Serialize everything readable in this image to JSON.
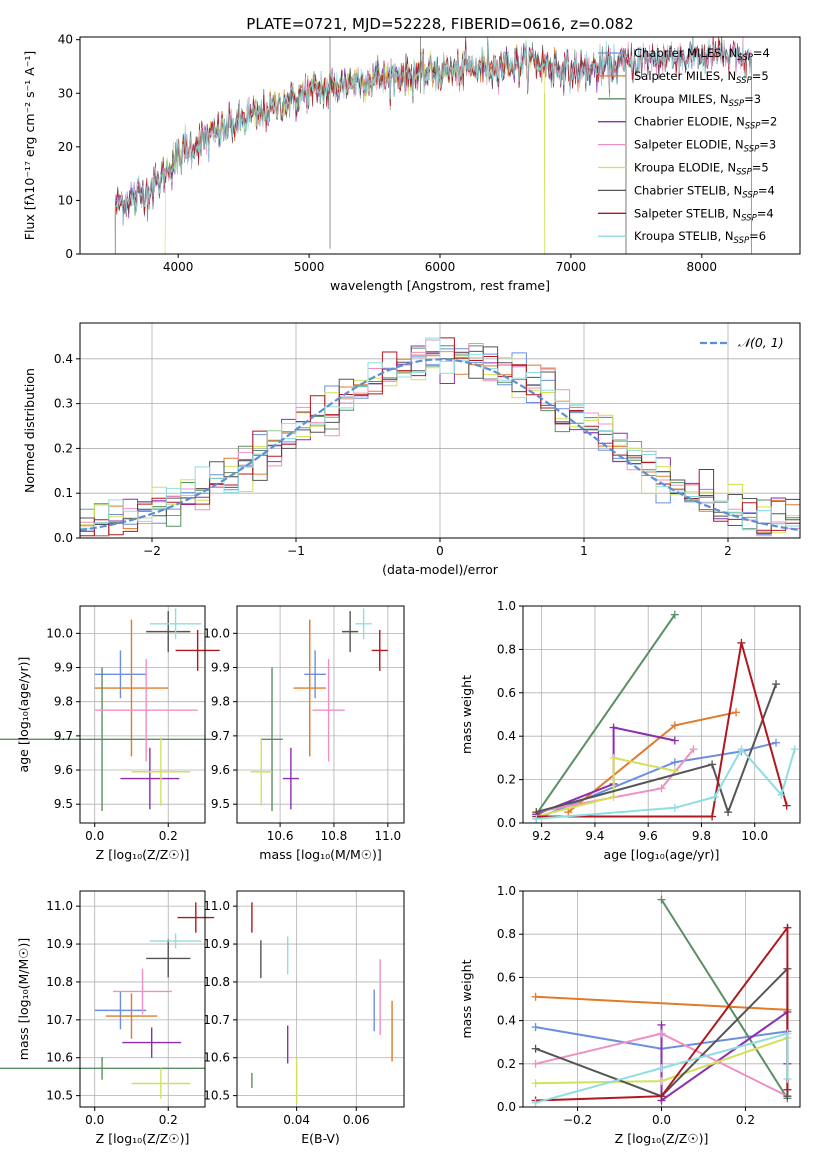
{
  "title": "PLATE=0721, MJD=52228, FIBERID=0616, z=0.082",
  "colors": [
    "#6b8fde",
    "#e07b2a",
    "#5a8f63",
    "#8b2fb0",
    "#f08fc5",
    "#d3e05a",
    "#555555",
    "#b01820",
    "#8fdde0"
  ],
  "chart_data": [
    {
      "id": "spectrum",
      "type": "line",
      "xlabel": "wavelength [Angstrom, rest frame]",
      "ylabel": "Flux [fλ10⁻¹⁷ erg cm⁻² s⁻¹ A⁻¹]",
      "xlim": [
        3250,
        8750
      ],
      "ylim": [
        0,
        40.5
      ],
      "xticks": [
        4000,
        5000,
        6000,
        7000,
        8000
      ],
      "yticks": [
        0,
        10,
        20,
        30,
        40
      ],
      "grid": false,
      "legend_position": "top-right",
      "continuum": [
        [
          3520,
          9
        ],
        [
          3700,
          11
        ],
        [
          3850,
          13
        ],
        [
          3950,
          17
        ],
        [
          4100,
          20
        ],
        [
          4400,
          24
        ],
        [
          4700,
          27
        ],
        [
          5000,
          30
        ],
        [
          5300,
          32
        ],
        [
          5600,
          33
        ],
        [
          6000,
          34
        ],
        [
          6400,
          35
        ],
        [
          6700,
          36
        ],
        [
          7000,
          34
        ],
        [
          7300,
          35
        ],
        [
          7500,
          36
        ],
        [
          7800,
          37
        ],
        [
          8100,
          37
        ],
        [
          8380,
          36
        ]
      ],
      "series": [
        {
          "name": "Chabrier MILES, N_SSP=4",
          "label_main": "Chabrier MILES, N",
          "label_sub": "SSP",
          "label_tail": "=4",
          "range": [
            3520,
            7420
          ]
        },
        {
          "name": "Salpeter MILES, N_SSP=5",
          "label_main": "Salpeter MILES, N",
          "label_sub": "SSP",
          "label_tail": "=5",
          "range": [
            3520,
            7420
          ]
        },
        {
          "name": "Kroupa MILES, N_SSP=3",
          "label_main": "Kroupa MILES, N",
          "label_sub": "SSP",
          "label_tail": "=3",
          "range": [
            3520,
            7420
          ]
        },
        {
          "name": "Chabrier ELODIE, N_SSP=2",
          "label_main": "Chabrier ELODIE, N",
          "label_sub": "SSP",
          "label_tail": "=2",
          "range": [
            3520,
            8380
          ]
        },
        {
          "name": "Salpeter ELODIE, N_SSP=3",
          "label_main": "Salpeter ELODIE, N",
          "label_sub": "SSP",
          "label_tail": "=3",
          "range": [
            3520,
            8380
          ]
        },
        {
          "name": "Kroupa ELODIE, N_SSP=5",
          "label_main": "Kroupa ELODIE, N",
          "label_sub": "SSP",
          "label_tail": "=5",
          "range": [
            3900,
            6800
          ]
        },
        {
          "name": "Chabrier STELIB, N_SSP=4",
          "label_main": "Chabrier STELIB, N",
          "label_sub": "SSP",
          "label_tail": "=4",
          "range": [
            3520,
            8380
          ]
        },
        {
          "name": "Salpeter STELIB, N_SSP=4",
          "label_main": "Salpeter STELIB, N",
          "label_sub": "SSP",
          "label_tail": "=4",
          "range": [
            3520,
            8380
          ]
        },
        {
          "name": "Kroupa STELIB, N_SSP=6",
          "label_main": "Kroupa STELIB, N",
          "label_sub": "SSP",
          "label_tail": "=6",
          "range": [
            3520,
            8380
          ]
        }
      ]
    },
    {
      "id": "residuals",
      "type": "line",
      "xlabel": "(data-model)/error",
      "ylabel": "Normed distribution",
      "xlim": [
        -2.5,
        2.5
      ],
      "ylim": [
        0,
        0.48
      ],
      "xticks": [
        -2,
        -1,
        0,
        1,
        2
      ],
      "xtick_labels": [
        "−2",
        "−1",
        "0",
        "1",
        "2"
      ],
      "yticks": [
        0,
        0.1,
        0.2,
        0.3,
        0.4
      ],
      "ytick_labels": [
        "0.0",
        "0.1",
        "0.2",
        "0.3",
        "0.4"
      ],
      "grid": true,
      "legend_position": "top-right",
      "legend_label": "𝒩(0, 1)",
      "gaussian": {
        "mean": 0,
        "sigma": 1
      },
      "bin_width": 0.1
    },
    {
      "id": "age_vs_Z",
      "type": "scatter",
      "xlabel": "Z [log₁₀(Z/Z☉)]",
      "ylabel": "age  [log₁₀(age/yr)]",
      "xlim": [
        -0.04,
        0.3
      ],
      "ylim": [
        9.445,
        10.08
      ],
      "xticks": [
        0.0,
        0.2
      ],
      "xtick_labels": [
        "0.0",
        "0.2"
      ],
      "yticks": [
        9.5,
        9.6,
        9.7,
        9.8,
        9.9,
        10.0
      ],
      "ytick_labels": [
        "9.5",
        "9.6",
        "9.7",
        "9.8",
        "9.9",
        "10.0"
      ],
      "grid": true,
      "points": [
        {
          "x": 0.07,
          "y": 9.88,
          "xerr": 0.07,
          "yerr": 0.07
        },
        {
          "x": 0.1,
          "y": 9.84,
          "xerr": 0.1,
          "yerr": 0.2
        },
        {
          "x": 0.02,
          "y": 9.69,
          "xerr": 0.3,
          "yerr": 0.21
        },
        {
          "x": 0.15,
          "y": 9.575,
          "xerr": 0.08,
          "yerr": 0.09
        },
        {
          "x": 0.14,
          "y": 9.775,
          "xerr": 0.14,
          "yerr": 0.15
        },
        {
          "x": 0.18,
          "y": 9.595,
          "xerr": 0.08,
          "yerr": 0.1
        },
        {
          "x": 0.2,
          "y": 10.005,
          "xerr": 0.06,
          "yerr": 0.06
        },
        {
          "x": 0.28,
          "y": 9.95,
          "xerr": 0.06,
          "yerr": 0.06
        },
        {
          "x": 0.22,
          "y": 10.028,
          "xerr": 0.07,
          "yerr": 0.045
        }
      ]
    },
    {
      "id": "age_vs_mass",
      "type": "scatter",
      "xlabel": "mass [log₁₀(M/M☉)]",
      "ylabel": "",
      "xlim": [
        10.44,
        11.06
      ],
      "ylim": [
        9.445,
        10.08
      ],
      "xticks": [
        10.6,
        10.8,
        11.0
      ],
      "xtick_labels": [
        "10.6",
        "10.8",
        "11.0"
      ],
      "yticks": [
        9.5,
        9.6,
        9.7,
        9.8,
        9.9,
        10.0
      ],
      "ytick_labels": [
        "9.5",
        "9.6",
        "9.7",
        "9.8",
        "9.9",
        "10.0"
      ],
      "grid": true,
      "points": [
        {
          "x": 10.73,
          "y": 9.88,
          "xerr": 0.04,
          "yerr": 0.07
        },
        {
          "x": 10.71,
          "y": 9.84,
          "xerr": 0.06,
          "yerr": 0.2
        },
        {
          "x": 10.57,
          "y": 9.69,
          "xerr": 0.04,
          "yerr": 0.21
        },
        {
          "x": 10.64,
          "y": 9.575,
          "xerr": 0.03,
          "yerr": 0.09
        },
        {
          "x": 10.78,
          "y": 9.775,
          "xerr": 0.06,
          "yerr": 0.15
        },
        {
          "x": 10.53,
          "y": 9.595,
          "xerr": 0.04,
          "yerr": 0.1
        },
        {
          "x": 10.86,
          "y": 10.005,
          "xerr": 0.03,
          "yerr": 0.06
        },
        {
          "x": 10.97,
          "y": 9.95,
          "xerr": 0.03,
          "yerr": 0.06
        },
        {
          "x": 10.91,
          "y": 10.028,
          "xerr": 0.03,
          "yerr": 0.045
        }
      ]
    },
    {
      "id": "weight_vs_age",
      "type": "line",
      "xlabel": "age  [log₁₀(age/yr)]",
      "ylabel": "mass weight",
      "xlim": [
        9.13,
        10.17
      ],
      "ylim": [
        0,
        1.0
      ],
      "xticks": [
        9.2,
        9.4,
        9.6,
        9.8,
        10.0
      ],
      "xtick_labels": [
        "9.2",
        "9.4",
        "9.6",
        "9.8",
        "10.0"
      ],
      "yticks": [
        0,
        0.2,
        0.4,
        0.6,
        0.8,
        1.0
      ],
      "ytick_labels": [
        "0.0",
        "0.2",
        "0.4",
        "0.6",
        "0.8",
        "1.0"
      ],
      "grid": true,
      "series": [
        {
          "x": [
            9.18,
            9.7,
            9.95,
            10.08
          ],
          "y": [
            0.02,
            0.28,
            0.33,
            0.37
          ]
        },
        {
          "x": [
            9.3,
            9.7,
            9.93
          ],
          "y": [
            0.05,
            0.45,
            0.51
          ]
        },
        {
          "x": [
            9.18,
            9.7
          ],
          "y": [
            0.04,
            0.96
          ]
        },
        {
          "x": [
            9.18,
            9.47,
            9.47,
            9.7
          ],
          "y": [
            0.04,
            0.18,
            0.44,
            0.38
          ]
        },
        {
          "x": [
            9.18,
            9.65,
            9.77
          ],
          "y": [
            0.05,
            0.16,
            0.34
          ]
        },
        {
          "x": [
            9.18,
            9.47,
            9.47,
            9.7
          ],
          "y": [
            0.03,
            0.12,
            0.3,
            0.24
          ]
        },
        {
          "x": [
            9.18,
            9.84,
            9.9,
            10.08
          ],
          "y": [
            0.05,
            0.27,
            0.05,
            0.64
          ]
        },
        {
          "x": [
            9.18,
            9.84,
            9.95,
            10.12
          ],
          "y": [
            0.03,
            0.03,
            0.83,
            0.08
          ]
        },
        {
          "x": [
            9.18,
            9.7,
            9.85,
            9.95,
            10.1,
            10.15
          ],
          "y": [
            0.02,
            0.07,
            0.12,
            0.34,
            0.13,
            0.34
          ]
        }
      ]
    },
    {
      "id": "mass_vs_Z",
      "type": "scatter",
      "xlabel": "Z [log₁₀(Z/Z☉)]",
      "ylabel": "mass [log₁₀(M/M☉)]",
      "xlim": [
        -0.04,
        0.3
      ],
      "ylim": [
        10.47,
        11.04
      ],
      "xticks": [
        0.0,
        0.2
      ],
      "xtick_labels": [
        "0.0",
        "0.2"
      ],
      "yticks": [
        10.5,
        10.6,
        10.7,
        10.8,
        10.9,
        11.0
      ],
      "ytick_labels": [
        "10.5",
        "10.6",
        "10.7",
        "10.8",
        "10.9",
        "11.0"
      ],
      "grid": true,
      "points": [
        {
          "x": 0.07,
          "y": 10.725,
          "xerr": 0.07,
          "yerr": 0.05
        },
        {
          "x": 0.1,
          "y": 10.71,
          "xerr": 0.07,
          "yerr": 0.06
        },
        {
          "x": 0.02,
          "y": 10.572,
          "xerr": 0.28,
          "yerr": 0.03
        },
        {
          "x": 0.155,
          "y": 10.64,
          "xerr": 0.08,
          "yerr": 0.04
        },
        {
          "x": 0.13,
          "y": 10.775,
          "xerr": 0.08,
          "yerr": 0.06
        },
        {
          "x": 0.18,
          "y": 10.532,
          "xerr": 0.08,
          "yerr": 0.04
        },
        {
          "x": 0.2,
          "y": 10.862,
          "xerr": 0.06,
          "yerr": 0.05
        },
        {
          "x": 0.275,
          "y": 10.97,
          "xerr": 0.05,
          "yerr": 0.04
        },
        {
          "x": 0.22,
          "y": 10.908,
          "xerr": 0.07,
          "yerr": 0.02
        }
      ]
    },
    {
      "id": "mass_vs_EBV",
      "type": "scatter",
      "xlabel": "E(B-V)",
      "ylabel": "",
      "xlim": [
        0.02,
        0.076
      ],
      "ylim": [
        10.47,
        11.04
      ],
      "xticks": [
        0.04,
        0.06
      ],
      "xtick_labels": [
        "0.04",
        "0.06"
      ],
      "yticks": [
        10.5,
        10.6,
        10.7,
        10.8,
        10.9,
        11.0
      ],
      "ytick_labels": [
        "10.5",
        "10.6",
        "10.7",
        "10.8",
        "10.9",
        "11.0"
      ],
      "grid": true,
      "points": [
        {
          "x": 0.066,
          "y": 10.725,
          "yerr": 0.055
        },
        {
          "x": 0.072,
          "y": 10.67,
          "yerr": 0.08
        },
        {
          "x": 0.025,
          "y": 10.54,
          "yerr": 0.02
        },
        {
          "x": 0.037,
          "y": 10.635,
          "yerr": 0.05
        },
        {
          "x": 0.068,
          "y": 10.76,
          "yerr": 0.1
        },
        {
          "x": 0.04,
          "y": 10.54,
          "yerr": 0.06
        },
        {
          "x": 0.028,
          "y": 10.86,
          "yerr": 0.05
        },
        {
          "x": 0.025,
          "y": 10.97,
          "yerr": 0.04
        },
        {
          "x": 0.037,
          "y": 10.87,
          "yerr": 0.05
        }
      ]
    },
    {
      "id": "weight_vs_Z",
      "type": "line",
      "xlabel": "Z [log₁₀(Z/Z☉)]",
      "ylabel": "mass weight",
      "xlim": [
        -0.33,
        0.33
      ],
      "ylim": [
        0,
        1.0
      ],
      "xticks": [
        -0.2,
        0.0,
        0.2
      ],
      "xtick_labels": [
        "−0.2",
        "0.0",
        "0.2"
      ],
      "yticks": [
        0,
        0.2,
        0.4,
        0.6,
        0.8,
        1.0
      ],
      "ytick_labels": [
        "0.0",
        "0.2",
        "0.4",
        "0.6",
        "0.8",
        "1.0"
      ],
      "grid": true,
      "series": [
        {
          "x": [
            -0.3,
            0.0,
            0.3
          ],
          "y": [
            0.37,
            0.27,
            0.35
          ]
        },
        {
          "x": [
            -0.3,
            0.3
          ],
          "y": [
            0.51,
            0.45
          ]
        },
        {
          "x": [
            0.0,
            0.3
          ],
          "y": [
            0.96,
            0.04
          ]
        },
        {
          "x": [
            0.0,
            0.0,
            0.3,
            0.3
          ],
          "y": [
            0.38,
            0.03,
            0.44,
            0.2
          ]
        },
        {
          "x": [
            -0.3,
            0.0,
            0.3
          ],
          "y": [
            0.2,
            0.34,
            0.05
          ]
        },
        {
          "x": [
            -0.3,
            0.0,
            0.3
          ],
          "y": [
            0.11,
            0.12,
            0.32
          ]
        },
        {
          "x": [
            -0.3,
            0.0,
            0.3,
            0.3
          ],
          "y": [
            0.27,
            0.05,
            0.64,
            0.05
          ]
        },
        {
          "x": [
            -0.3,
            0.0,
            0.3,
            0.3
          ],
          "y": [
            0.03,
            0.05,
            0.83,
            0.08
          ]
        },
        {
          "x": [
            -0.3,
            0.0,
            0.3,
            0.3
          ],
          "y": [
            0.02,
            0.18,
            0.34,
            0.13
          ]
        }
      ]
    }
  ]
}
